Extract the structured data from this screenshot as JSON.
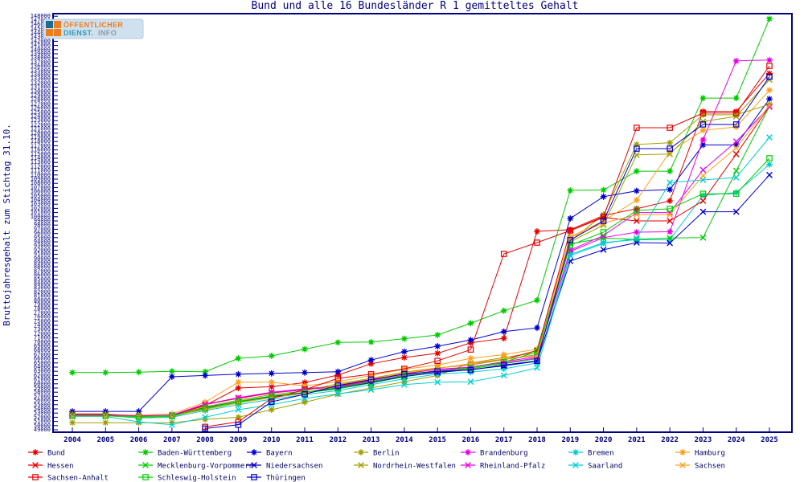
{
  "page": {
    "title": "Bund und alle 16 Bundesländer R 1 gemitteltes Gehalt",
    "ylabel": "Bruttojahresgehalt zum Stichtag 31.10.",
    "logo": {
      "line1": "ÖFFENTLICHER",
      "line2a": "DIENST.",
      "line2b": "INFO"
    }
  },
  "colors": {
    "axis": "#000080",
    "frame": "#000080",
    "background": "#ffffff",
    "red": "#e60000",
    "green": "#00cc00",
    "blue": "#0000d0",
    "olive": "#a0a000",
    "magenta": "#e800e8",
    "cyan": "#00cfcf",
    "orange": "#ffa020"
  },
  "chart_data": {
    "type": "line",
    "title": "Bund und alle 16 Bundesländer R 1 gemitteltes Gehalt",
    "xlabel": "",
    "ylabel": "Bruttojahresgehalt zum Stichtag 31.10.",
    "x": [
      2004,
      2005,
      2006,
      2007,
      2008,
      2009,
      2010,
      2011,
      2012,
      2013,
      2014,
      2015,
      2016,
      2017,
      2018,
      2019,
      2020,
      2021,
      2022,
      2023,
      2024,
      2025
    ],
    "ylim": [
      49000,
      148000
    ],
    "ytick_step": 1000,
    "xtick_step": 1,
    "grid": false,
    "legend_position": "bottom",
    "series": [
      {
        "name": "Bund",
        "color": "#e60000",
        "marker": "star",
        "values": [
          52600,
          52600,
          52400,
          52400,
          54800,
          59000,
          59300,
          60300,
          62100,
          64800,
          66300,
          67300,
          69800,
          70900,
          96500,
          96900,
          100300,
          101900,
          103800,
          125200,
          125200,
          134300
        ]
      },
      {
        "name": "Baden-Württemberg",
        "color": "#00cc00",
        "marker": "star",
        "values": [
          62700,
          62700,
          62800,
          63000,
          62900,
          66100,
          66700,
          68300,
          69900,
          70000,
          70800,
          71700,
          74500,
          77500,
          80000,
          106300,
          106400,
          110900,
          110900,
          128400,
          128400,
          147400
        ]
      },
      {
        "name": "Bayern",
        "color": "#0000d0",
        "marker": "star",
        "values": [
          53400,
          53400,
          53400,
          61700,
          62000,
          62300,
          62500,
          62700,
          62900,
          65700,
          67700,
          69000,
          70500,
          72500,
          73400,
          99600,
          104800,
          106200,
          106500,
          117200,
          117200,
          128200
        ]
      },
      {
        "name": "Berlin",
        "color": "#a0a000",
        "marker": "star",
        "values": [
          50700,
          50700,
          50700,
          50700,
          51500,
          52000,
          53800,
          55600,
          57500,
          59000,
          60500,
          62000,
          65000,
          66300,
          67500,
          94200,
          100500,
          117300,
          117700,
          124400,
          124400,
          126900
        ]
      },
      {
        "name": "Brandenburg",
        "color": "#e800e8",
        "marker": "star",
        "values": [
          52400,
          52400,
          52200,
          52500,
          55200,
          56500,
          57800,
          58600,
          59300,
          60800,
          62400,
          63500,
          64000,
          65300,
          66500,
          91700,
          95000,
          96300,
          96400,
          118400,
          137300,
          137500
        ]
      },
      {
        "name": "Bremen",
        "color": "#00cfcf",
        "marker": "star",
        "values": [
          52400,
          52400,
          51800,
          52000,
          53600,
          55000,
          56300,
          57400,
          58400,
          59800,
          61200,
          62300,
          62800,
          63600,
          65000,
          91000,
          93800,
          94500,
          94500,
          105100,
          105800,
          112500
        ]
      },
      {
        "name": "Hamburg",
        "color": "#ffa020",
        "marker": "star",
        "values": [
          52700,
          52700,
          52500,
          52800,
          55600,
          60400,
          60400,
          59500,
          60500,
          62000,
          63500,
          64500,
          66100,
          67000,
          68300,
          95200,
          99000,
          104000,
          115500,
          120700,
          121500,
          130300
        ]
      },
      {
        "name": "Hessen",
        "color": "#e60000",
        "marker": "x",
        "values": [
          52800,
          52800,
          52000,
          52300,
          55000,
          56600,
          57900,
          58800,
          59500,
          60900,
          62500,
          63700,
          64800,
          65800,
          68000,
          96700,
          99800,
          99000,
          99000,
          103800,
          115000,
          126400
        ]
      },
      {
        "name": "Mecklenburg-Vorpommern",
        "color": "#00cc00",
        "marker": "x",
        "values": [
          52300,
          52300,
          52000,
          52200,
          54000,
          55600,
          56900,
          57800,
          58800,
          60200,
          61700,
          62800,
          63600,
          64800,
          66000,
          93500,
          94900,
          94600,
          94900,
          95000,
          111000,
          126400
        ]
      },
      {
        "name": "Niedersachsen",
        "color": "#0000d0",
        "marker": "x",
        "values": [
          52500,
          52500,
          52200,
          52400,
          54300,
          55800,
          57000,
          57900,
          59000,
          60300,
          61800,
          62700,
          63400,
          64300,
          65400,
          89400,
          92100,
          93800,
          93700,
          101200,
          101200,
          110000
        ]
      },
      {
        "name": "Nordrhein-Westfalen",
        "color": "#a0a000",
        "marker": "x",
        "values": [
          52300,
          52300,
          52100,
          52300,
          54500,
          56100,
          57400,
          58300,
          60000,
          61300,
          62800,
          63800,
          64500,
          65800,
          67000,
          94000,
          98000,
          114800,
          115000,
          122800,
          124000,
          132800
        ]
      },
      {
        "name": "Rheinland-Pfalz",
        "color": "#e800e8",
        "marker": "x",
        "values": [
          52500,
          52500,
          52300,
          52500,
          55100,
          56700,
          58000,
          58800,
          59200,
          60600,
          62100,
          63200,
          64000,
          65000,
          66200,
          92000,
          95500,
          101000,
          101000,
          111200,
          118000,
          126300
        ]
      },
      {
        "name": "Saarland",
        "color": "#00cfcf",
        "marker": "x",
        "values": [
          52200,
          52200,
          50900,
          50200,
          52000,
          53800,
          55000,
          56500,
          57600,
          58600,
          59800,
          60400,
          60500,
          62000,
          63800,
          90700,
          93600,
          94800,
          108200,
          108800,
          109400,
          119000
        ]
      },
      {
        "name": "Sachsen",
        "color": "#ffa020",
        "marker": "x",
        "values": [
          52300,
          52300,
          52100,
          52300,
          53800,
          55400,
          56700,
          57700,
          59800,
          61100,
          62600,
          63700,
          64800,
          66000,
          66700,
          95000,
          98500,
          100500,
          100500,
          109800,
          116500,
          126700
        ]
      },
      {
        "name": "Sachsen-Anhalt",
        "color": "#e60000",
        "marker": "square",
        "values": [
          null,
          null,
          null,
          null,
          49700,
          50900,
          56500,
          58600,
          61300,
          62300,
          63600,
          65500,
          68200,
          91100,
          93800,
          96700,
          100000,
          121300,
          121300,
          124800,
          124800,
          136100
        ]
      },
      {
        "name": "Schleswig-Holstein",
        "color": "#00cc00",
        "marker": "square",
        "values": [
          52350,
          52350,
          52150,
          52350,
          54200,
          55800,
          57100,
          58000,
          59100,
          60500,
          62000,
          63000,
          63800,
          65200,
          67700,
          93200,
          96300,
          101500,
          101900,
          105500,
          105500,
          114000
        ]
      },
      {
        "name": "Thüringen",
        "color": "#0000d0",
        "marker": "square",
        "values": [
          null,
          null,
          null,
          null,
          49300,
          50200,
          55700,
          57500,
          59600,
          61000,
          62300,
          63000,
          63300,
          64500,
          65500,
          94400,
          99000,
          116300,
          116300,
          122100,
          122100,
          133500
        ]
      }
    ]
  },
  "legend": {
    "rows": 3,
    "cols": 7,
    "order_note": "row-major: 7 star series, 7 x series, 3 square series"
  }
}
